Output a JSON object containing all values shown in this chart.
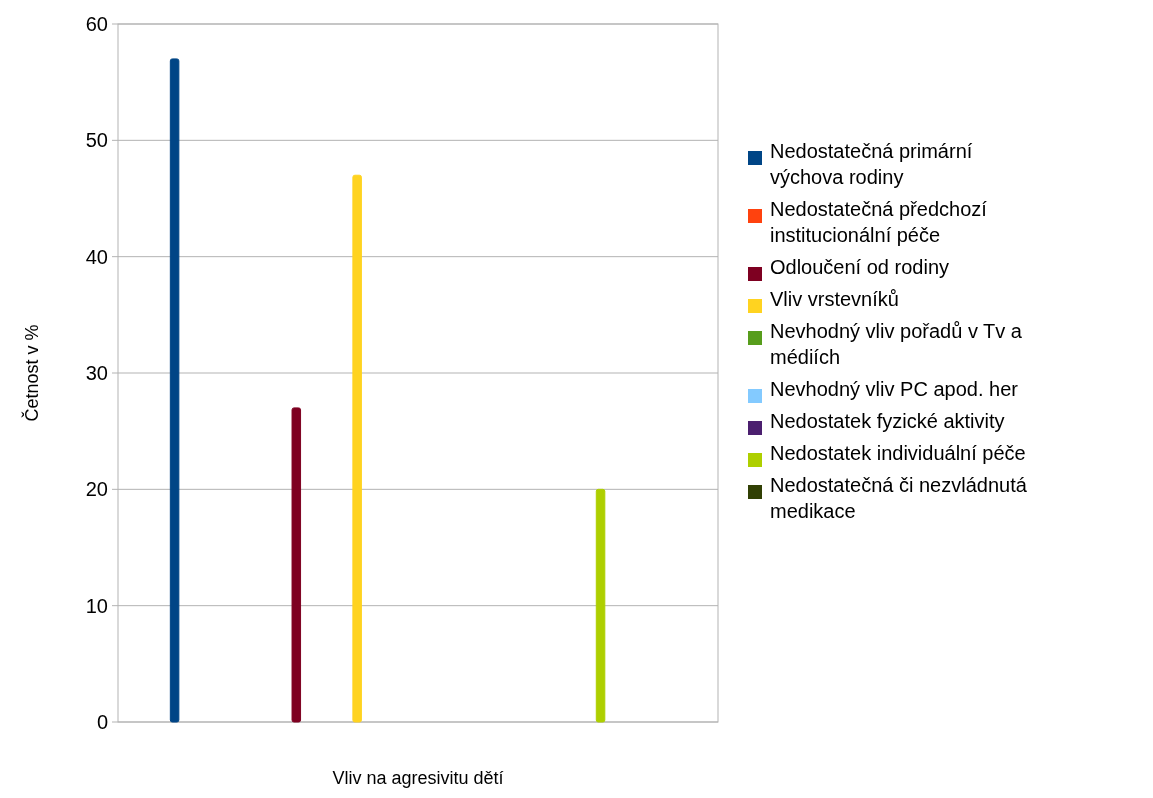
{
  "chart_data": {
    "type": "bar",
    "categories": [
      null
    ],
    "xlabel": "Vliv na agresivitu dětí",
    "ylabel": "Četnost v %",
    "ylim": [
      0,
      60
    ],
    "yticks": [
      0,
      10,
      20,
      30,
      40,
      50,
      60
    ],
    "grid": "y",
    "legend": "right",
    "series": [
      {
        "name": "Nedostatečná primární výchova rodiny",
        "color": "#004586",
        "values": [
          57
        ]
      },
      {
        "name": "Nedostatečná předchozí institucionální péče",
        "color": "#ff420e",
        "values": [
          0
        ]
      },
      {
        "name": "Odloučení od rodiny",
        "color": "#7e0021",
        "values": [
          27
        ]
      },
      {
        "name": "Vliv vrstevníků",
        "color": "#ffd320",
        "values": [
          47
        ]
      },
      {
        "name": "Nevhodný vliv pořadů v Tv a médiích",
        "color": "#579d1c",
        "values": [
          0
        ]
      },
      {
        "name": "Nevhodný vliv PC apod. her",
        "color": "#83caff",
        "values": [
          0
        ]
      },
      {
        "name": "Nedostatek fyzické aktivity",
        "color": "#4b1f6f",
        "values": [
          0
        ]
      },
      {
        "name": "Nedostatek individuální péče",
        "color": "#aecf00",
        "values": [
          20
        ]
      },
      {
        "name": "Nedostatečná či nezvládnutá medikace",
        "color": "#314004",
        "values": [
          0
        ]
      }
    ]
  }
}
